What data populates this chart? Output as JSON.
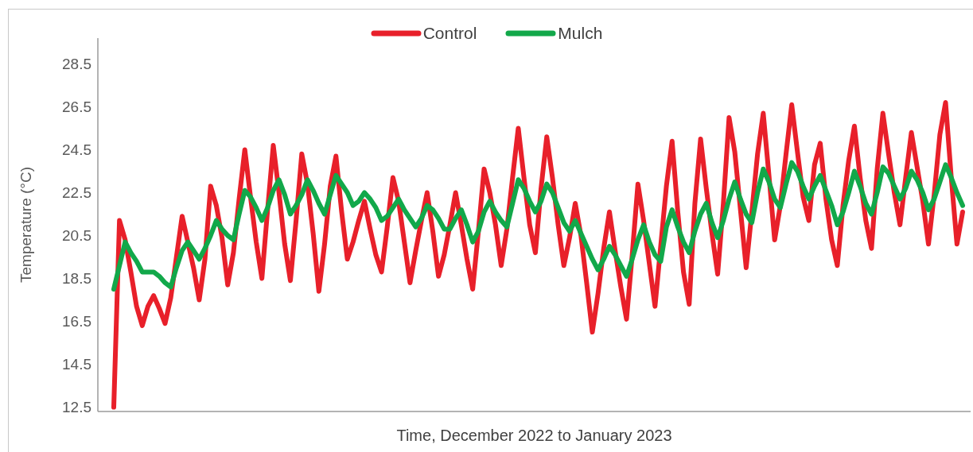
{
  "chart_data": {
    "type": "line",
    "xlabel": "Time, December 2022 to January 2023",
    "ylabel": "Temperature (°C)",
    "categories": [
      null,
      null,
      null,
      null,
      null,
      null,
      null,
      null,
      null,
      null,
      null,
      null,
      null,
      null,
      null,
      null,
      null,
      null,
      null,
      null,
      null,
      null,
      null,
      null,
      null,
      null,
      null,
      null,
      null,
      null,
      null,
      null,
      null,
      null,
      null,
      null,
      null,
      null,
      null,
      null,
      null,
      null,
      null,
      null,
      null,
      null,
      null,
      null,
      null,
      null,
      null,
      null,
      null,
      null,
      null,
      null,
      null,
      null,
      null,
      null,
      null,
      null,
      null,
      null,
      null,
      null,
      null,
      null,
      null,
      null,
      null,
      null,
      null,
      null,
      null,
      null,
      null,
      null,
      null,
      null,
      null,
      null,
      null,
      null,
      null,
      null,
      null,
      null,
      null,
      null,
      null,
      null,
      null,
      null,
      null,
      null,
      null,
      null,
      null,
      null,
      null,
      null,
      null,
      null,
      null,
      null,
      null,
      null,
      null,
      null,
      null,
      null,
      null,
      null,
      null,
      null,
      null,
      null,
      null,
      null,
      null,
      null,
      null,
      null,
      null,
      null,
      null,
      null,
      null,
      null,
      null,
      null,
      null,
      null,
      null,
      null,
      null,
      null,
      null,
      null,
      null,
      null,
      null,
      null,
      null,
      null,
      null,
      null,
      null,
      null
    ],
    "series": [
      {
        "name": "Control",
        "color": "#e8202a",
        "values": [
          12.5,
          21.2,
          20.3,
          18.8,
          17.2,
          16.3,
          17.2,
          17.7,
          17.1,
          16.4,
          17.6,
          19.5,
          21.4,
          20.2,
          19.0,
          17.5,
          19.4,
          22.8,
          21.9,
          20.4,
          18.2,
          19.7,
          22.2,
          24.5,
          22.3,
          20.2,
          18.5,
          21.7,
          24.7,
          22.5,
          20.1,
          18.4,
          21.2,
          24.3,
          22.9,
          20.6,
          17.9,
          20.1,
          22.8,
          24.2,
          21.6,
          19.4,
          20.2,
          21.2,
          22.1,
          20.8,
          19.6,
          18.8,
          20.9,
          23.2,
          22.1,
          20.2,
          18.3,
          19.8,
          21.2,
          22.5,
          20.7,
          18.6,
          19.6,
          21.0,
          22.5,
          21.0,
          19.4,
          18.0,
          20.7,
          23.6,
          22.5,
          21.0,
          19.1,
          20.8,
          23.2,
          25.5,
          23.2,
          21.0,
          19.7,
          22.7,
          25.1,
          23.2,
          21.0,
          19.1,
          20.4,
          22.0,
          20.5,
          18.3,
          16.0,
          17.8,
          19.9,
          21.6,
          19.8,
          18.1,
          16.6,
          19.6,
          22.9,
          21.2,
          19.2,
          17.2,
          20.0,
          22.8,
          24.9,
          21.6,
          18.8,
          17.3,
          22.0,
          25.0,
          22.7,
          20.6,
          18.7,
          22.0,
          26.0,
          24.4,
          21.7,
          19.0,
          21.6,
          24.3,
          26.2,
          23.3,
          20.3,
          21.9,
          24.3,
          26.6,
          24.4,
          22.3,
          21.2,
          23.8,
          24.8,
          22.2,
          20.3,
          19.1,
          21.9,
          24.0,
          25.6,
          23.2,
          21.2,
          19.9,
          23.6,
          26.2,
          24.3,
          22.5,
          21.0,
          23.2,
          25.3,
          23.7,
          22.1,
          20.1,
          22.4,
          25.2,
          26.7,
          23.2,
          20.1,
          21.6
        ]
      },
      {
        "name": "Mulch",
        "color": "#12a84a",
        "values": [
          18.0,
          19.1,
          20.2,
          19.7,
          19.3,
          18.8,
          18.8,
          18.8,
          18.6,
          18.3,
          18.1,
          19.0,
          19.8,
          20.2,
          19.8,
          19.4,
          19.9,
          20.5,
          21.2,
          20.8,
          20.5,
          20.3,
          21.5,
          22.6,
          22.3,
          21.8,
          21.2,
          21.8,
          22.6,
          23.1,
          22.4,
          21.5,
          21.9,
          22.4,
          23.1,
          22.6,
          22.0,
          21.5,
          22.4,
          23.3,
          22.9,
          22.5,
          21.9,
          22.1,
          22.5,
          22.2,
          21.8,
          21.2,
          21.4,
          21.8,
          22.2,
          21.7,
          21.3,
          20.9,
          21.3,
          21.9,
          21.7,
          21.3,
          20.8,
          20.8,
          21.3,
          21.7,
          21.0,
          20.2,
          20.7,
          21.6,
          22.1,
          21.6,
          21.2,
          20.9,
          22.0,
          23.1,
          22.7,
          22.1,
          21.6,
          22.1,
          22.9,
          22.5,
          21.8,
          21.1,
          20.7,
          21.2,
          20.6,
          20.0,
          19.4,
          18.9,
          19.4,
          20.0,
          19.6,
          19.1,
          18.6,
          19.4,
          20.3,
          21.0,
          20.2,
          19.6,
          19.3,
          20.9,
          21.7,
          20.9,
          20.2,
          19.7,
          20.7,
          21.5,
          22.0,
          21.1,
          20.4,
          21.2,
          22.2,
          23.0,
          22.2,
          21.5,
          21.1,
          22.5,
          23.6,
          23.0,
          22.2,
          21.8,
          22.9,
          23.9,
          23.5,
          22.8,
          22.2,
          22.8,
          23.3,
          22.6,
          21.9,
          21.0,
          21.6,
          22.5,
          23.5,
          22.8,
          22.0,
          21.5,
          22.5,
          23.7,
          23.4,
          22.8,
          22.2,
          22.7,
          23.5,
          23.1,
          22.5,
          21.7,
          22.2,
          23.0,
          23.8,
          23.2,
          22.5,
          21.9
        ]
      }
    ],
    "ylim": [
      12.3,
      29.7
    ],
    "yticks": [
      {
        "value": 12.5,
        "label": "12.5"
      },
      {
        "value": 14.5,
        "label": "14.5"
      },
      {
        "value": 16.5,
        "label": "16.5"
      },
      {
        "value": 18.5,
        "label": "18.5"
      },
      {
        "value": 20.5,
        "label": "20.5"
      },
      {
        "value": 22.5,
        "label": "22.5"
      },
      {
        "value": 24.5,
        "label": "24.5"
      },
      {
        "value": 26.5,
        "label": "26.5"
      },
      {
        "value": 28.5,
        "label": "28.5"
      }
    ],
    "tick_labels": "y",
    "legend": "top",
    "line_style": "solid"
  }
}
